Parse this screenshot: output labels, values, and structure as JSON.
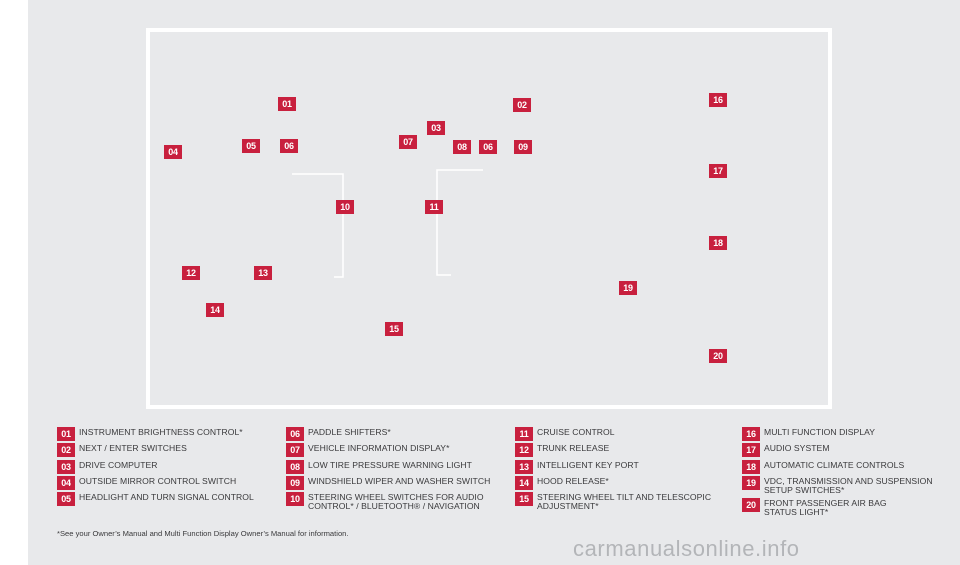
{
  "diagram_callouts": [
    "01",
    "02",
    "03",
    "04",
    "05",
    "06",
    "07",
    "08",
    "06",
    "09",
    "10",
    "11",
    "12",
    "13",
    "14",
    "15",
    "16",
    "17",
    "18",
    "19",
    "20"
  ],
  "legend": [
    {
      "num": "01",
      "text": "INSTRUMENT BRIGHTNESS CONTROL*"
    },
    {
      "num": "02",
      "text": "NEXT / ENTER SWITCHES"
    },
    {
      "num": "03",
      "text": "DRIVE COMPUTER"
    },
    {
      "num": "04",
      "text": "OUTSIDE MIRROR CONTROL SWITCH"
    },
    {
      "num": "05",
      "text": "HEADLIGHT AND TURN SIGNAL CONTROL"
    },
    {
      "num": "06",
      "text": "PADDLE SHIFTERS*"
    },
    {
      "num": "07",
      "text": "VEHICLE INFORMATION DISPLAY*"
    },
    {
      "num": "08",
      "text": "LOW TIRE PRESSURE WARNING LIGHT"
    },
    {
      "num": "09",
      "text": "WINDSHIELD WIPER AND WASHER SWITCH"
    },
    {
      "num": "10",
      "text": "STEERING WHEEL SWITCHES FOR AUDIO CONTROL* / BLUETOOTH® / NAVIGATION"
    },
    {
      "num": "11",
      "text": "CRUISE CONTROL"
    },
    {
      "num": "12",
      "text": "TRUNK RELEASE"
    },
    {
      "num": "13",
      "text": "INTELLIGENT KEY PORT"
    },
    {
      "num": "14",
      "text": "HOOD RELEASE*"
    },
    {
      "num": "15",
      "text": "STEERING WHEEL TILT AND TELESCOPIC ADJUSTMENT*"
    },
    {
      "num": "16",
      "text": "MULTI FUNCTION DISPLAY"
    },
    {
      "num": "17",
      "text": "AUDIO SYSTEM"
    },
    {
      "num": "18",
      "text": "AUTOMATIC CLIMATE CONTROLS"
    },
    {
      "num": "19",
      "text": "VDC, TRANSMISSION AND SUSPENSION SETUP SWITCHES*"
    },
    {
      "num": "20",
      "text": "FRONT PASSENGER AIR BAG STATUS LIGHT*"
    }
  ],
  "footnote": "*See your Owner’s Manual and Multi Function Display Owner’s Manual for information.",
  "watermark": "carmanualsonline.info",
  "colors": {
    "callout_bg": "#c8203e",
    "callout_text": "#ffffff",
    "page_bg": "#e8e9eb",
    "frame": "#ffffff",
    "text": "#3a3a3c"
  }
}
